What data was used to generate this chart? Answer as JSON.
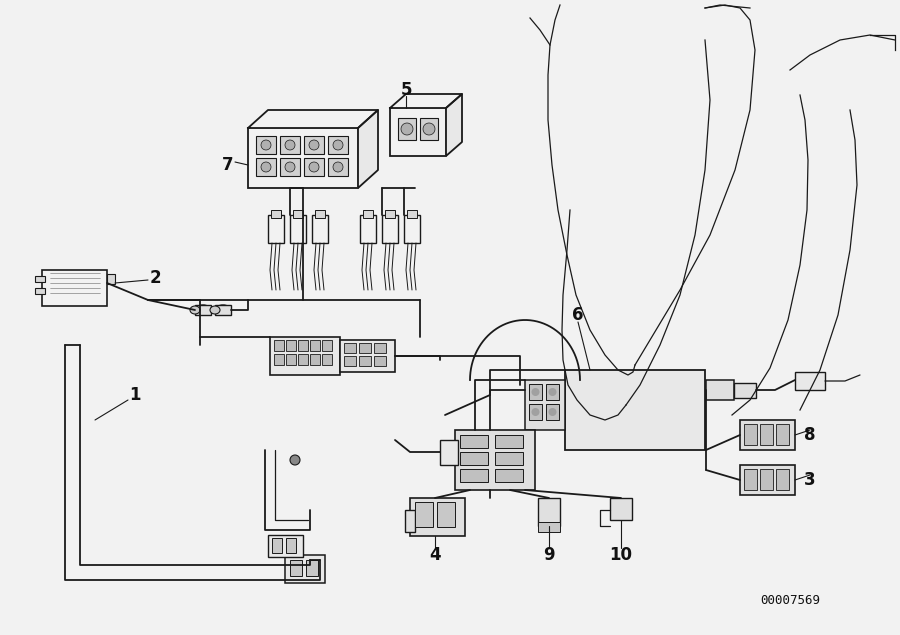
{
  "background_color": "#f2f2f2",
  "line_color": "#1a1a1a",
  "label_color": "#111111",
  "diagram_id": "00007569",
  "figsize": [
    9.0,
    6.35
  ],
  "dpi": 100
}
